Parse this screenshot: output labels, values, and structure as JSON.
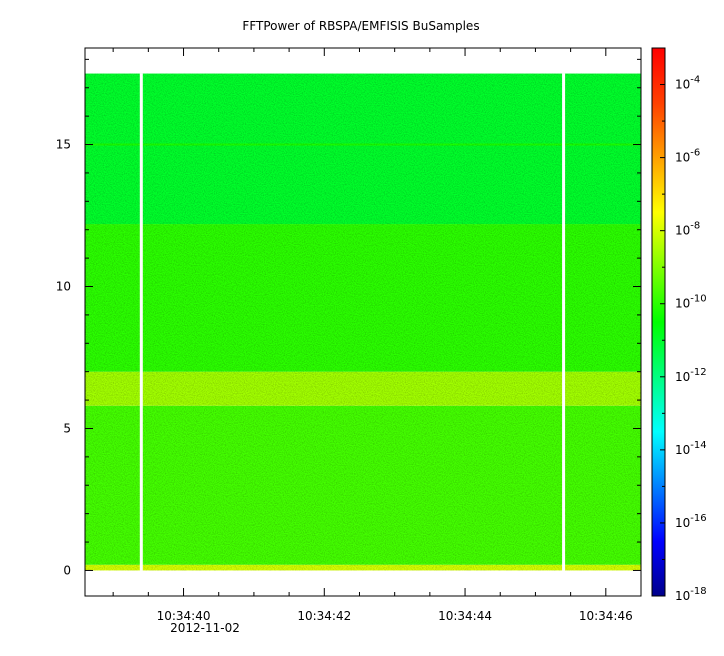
{
  "chart_data": {
    "type": "heatmap",
    "title": "FFTPower of RBSPA/EMFISIS  BuSamples",
    "xlabel": "",
    "ylabel": "",
    "x_ticks": [
      "10:34:40",
      "10:34:42",
      "10:34:44",
      "10:34:46"
    ],
    "x_tick_values": [
      40,
      42,
      44,
      46
    ],
    "date_label": "2012-11-02",
    "xlim": [
      38.6,
      46.5
    ],
    "y_ticks": [
      "0",
      "5",
      "10",
      "15"
    ],
    "y_tick_values": [
      0,
      5,
      10,
      15
    ],
    "ylim": [
      -0.9,
      18.4
    ],
    "data_extent": {
      "y": [
        0,
        17.5
      ]
    },
    "gaps_seconds": [
      39.4,
      45.4
    ],
    "colorbar": {
      "scale": "log",
      "range": [
        1e-18,
        0.001
      ],
      "tick_values": [
        -18,
        -16,
        -14,
        -12,
        -10,
        -8,
        -6,
        -4
      ],
      "tick_labels": [
        {
          "base": "10",
          "exp": "-18"
        },
        {
          "base": "10",
          "exp": "-16"
        },
        {
          "base": "10",
          "exp": "-14"
        },
        {
          "base": "10",
          "exp": "-12"
        },
        {
          "base": "10",
          "exp": "-10"
        },
        {
          "base": "10",
          "exp": "-8"
        },
        {
          "base": "10",
          "exp": "-6"
        },
        {
          "base": "10",
          "exp": "-4"
        }
      ],
      "colormap": [
        "#00008b",
        "#0000ff",
        "#0080ff",
        "#00ffff",
        "#00ff80",
        "#00ff00",
        "#80ff00",
        "#ffff00",
        "#ffa000",
        "#ff4000",
        "#ff0000"
      ]
    },
    "bands": [
      {
        "y": [
          0.0,
          0.2
        ],
        "log10_power": -8.0
      },
      {
        "y": [
          0.2,
          5.8
        ],
        "log10_power": -9.7
      },
      {
        "y": [
          5.8,
          7.0
        ],
        "log10_power": -8.6
      },
      {
        "y": [
          7.0,
          12.2
        ],
        "log10_power": -10.0
      },
      {
        "y": [
          12.2,
          17.5
        ],
        "log10_power": -11.0
      }
    ],
    "line_feature": {
      "y": 15.0,
      "log10_power": -10.2
    }
  }
}
